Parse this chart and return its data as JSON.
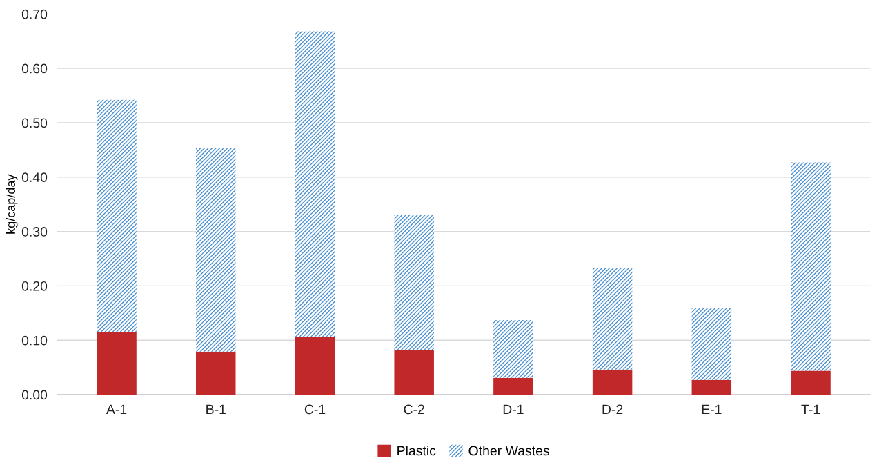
{
  "chart_data": {
    "type": "bar",
    "stacked": true,
    "ylabel": "kg/cap/day",
    "categories": [
      "A-1",
      "B-1",
      "C-1",
      "C-2",
      "D-1",
      "D-2",
      "E-1",
      "T-1"
    ],
    "series": [
      {
        "name": "Plastic",
        "color": "#c0282a",
        "values": [
          0.115,
          0.079,
          0.106,
          0.082,
          0.031,
          0.046,
          0.027,
          0.044
        ]
      },
      {
        "name": "Other Wastes",
        "color": "#4a90d0",
        "values": [
          0.427,
          0.374,
          0.562,
          0.249,
          0.106,
          0.187,
          0.133,
          0.383
        ]
      }
    ],
    "ylim": [
      0,
      0.7
    ],
    "yticks": [
      {
        "value": 0,
        "label": "0.00"
      },
      {
        "value": 0.1,
        "label": "0.10"
      },
      {
        "value": 0.2,
        "label": "0.20"
      },
      {
        "value": 0.3,
        "label": "0.30"
      },
      {
        "value": 0.4,
        "label": "0.40"
      },
      {
        "value": 0.5,
        "label": "0.50"
      },
      {
        "value": 0.6,
        "label": "0.60"
      },
      {
        "value": 0.7,
        "label": "0.70"
      }
    ],
    "grid": "y",
    "legend": "bottom"
  }
}
